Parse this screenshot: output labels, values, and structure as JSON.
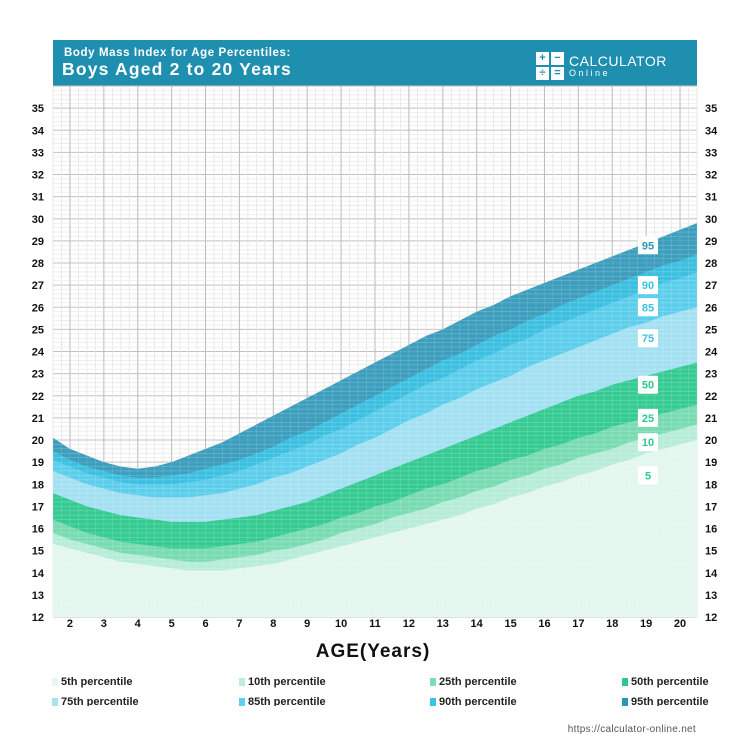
{
  "header": {
    "title": "Body Mass Index for Age Percentiles:",
    "subtitle": "Boys Aged 2 to 20 Years",
    "background_color": "#1f8fb0"
  },
  "logo": {
    "name": "CALCULATOR",
    "sub": "Online",
    "icon_symbols": [
      "+",
      "−",
      "÷",
      "="
    ]
  },
  "source_url": "https://calculator-online.net",
  "chart_data": {
    "type": "area",
    "title": "Body Mass Index for Age Percentiles:",
    "subtitle": "Boys Aged 2 to 20 Years",
    "xlabel": "AGE(Years)",
    "ylabel": "",
    "xlim": [
      1.5,
      20.5
    ],
    "ylim": [
      12,
      36
    ],
    "x_ticks": [
      2,
      3,
      4,
      5,
      6,
      7,
      8,
      9,
      10,
      11,
      12,
      13,
      14,
      15,
      16,
      17,
      18,
      19,
      20
    ],
    "y_ticks": [
      12,
      13,
      14,
      15,
      16,
      17,
      18,
      19,
      20,
      21,
      22,
      23,
      24,
      25,
      26,
      27,
      28,
      29,
      30,
      31,
      32,
      33,
      34,
      35
    ],
    "grid": true,
    "legend_position": "bottom",
    "x": [
      1.5,
      2,
      2.5,
      3,
      3.5,
      4,
      4.5,
      5,
      5.5,
      6,
      6.5,
      7,
      7.5,
      8,
      8.5,
      9,
      9.5,
      10,
      10.5,
      11,
      11.5,
      12,
      12.5,
      13,
      13.5,
      14,
      14.5,
      15,
      15.5,
      16,
      16.5,
      17,
      17.5,
      18,
      18.5,
      19,
      19.5,
      20,
      20.5
    ],
    "series": [
      {
        "name": "5th percentile",
        "color": "#e6f7f0",
        "values": [
          15.3,
          15.1,
          14.9,
          14.7,
          14.5,
          14.4,
          14.3,
          14.2,
          14.1,
          14.1,
          14.1,
          14.2,
          14.3,
          14.4,
          14.6,
          14.8,
          15.0,
          15.2,
          15.4,
          15.6,
          15.8,
          16.0,
          16.2,
          16.4,
          16.6,
          16.9,
          17.1,
          17.4,
          17.6,
          17.9,
          18.1,
          18.4,
          18.6,
          18.9,
          19.1,
          19.4,
          19.6,
          19.8,
          20.0
        ]
      },
      {
        "name": "10th percentile",
        "color": "#bdeedb",
        "values": [
          15.8,
          15.5,
          15.3,
          15.1,
          14.9,
          14.8,
          14.7,
          14.6,
          14.5,
          14.5,
          14.6,
          14.7,
          14.8,
          15.0,
          15.1,
          15.3,
          15.5,
          15.8,
          16.0,
          16.2,
          16.5,
          16.7,
          16.9,
          17.2,
          17.4,
          17.7,
          17.9,
          18.2,
          18.4,
          18.7,
          18.9,
          19.2,
          19.4,
          19.6,
          19.9,
          20.1,
          20.3,
          20.5,
          20.7
        ]
      },
      {
        "name": "25th percentile",
        "color": "#7fdcb4",
        "values": [
          16.4,
          16.1,
          15.8,
          15.6,
          15.4,
          15.3,
          15.2,
          15.1,
          15.1,
          15.1,
          15.2,
          15.3,
          15.4,
          15.6,
          15.8,
          16.0,
          16.2,
          16.5,
          16.7,
          17.0,
          17.2,
          17.5,
          17.8,
          18.0,
          18.3,
          18.6,
          18.8,
          19.1,
          19.3,
          19.6,
          19.8,
          20.1,
          20.3,
          20.6,
          20.8,
          21.0,
          21.2,
          21.4,
          21.6
        ]
      },
      {
        "name": "50th percentile",
        "color": "#2dc98a",
        "values": [
          17.6,
          17.3,
          17.0,
          16.8,
          16.6,
          16.5,
          16.4,
          16.3,
          16.3,
          16.3,
          16.4,
          16.5,
          16.6,
          16.8,
          17.0,
          17.2,
          17.5,
          17.8,
          18.1,
          18.4,
          18.7,
          19.0,
          19.3,
          19.6,
          19.9,
          20.2,
          20.5,
          20.8,
          21.1,
          21.4,
          21.7,
          22.0,
          22.2,
          22.5,
          22.7,
          22.9,
          23.1,
          23.3,
          23.5
        ]
      },
      {
        "name": "75th percentile",
        "color": "#a9e3f2",
        "values": [
          18.6,
          18.3,
          18.0,
          17.8,
          17.6,
          17.5,
          17.4,
          17.4,
          17.4,
          17.5,
          17.6,
          17.8,
          18.0,
          18.3,
          18.5,
          18.8,
          19.1,
          19.4,
          19.8,
          20.1,
          20.5,
          20.9,
          21.2,
          21.6,
          21.9,
          22.3,
          22.6,
          22.9,
          23.3,
          23.6,
          23.9,
          24.2,
          24.5,
          24.8,
          25.1,
          25.3,
          25.6,
          25.8,
          26.0
        ]
      },
      {
        "name": "85th percentile",
        "color": "#5fcfec",
        "values": [
          19.1,
          18.8,
          18.5,
          18.3,
          18.1,
          18.0,
          18.0,
          18.0,
          18.1,
          18.2,
          18.4,
          18.6,
          18.9,
          19.2,
          19.5,
          19.8,
          20.2,
          20.5,
          20.9,
          21.3,
          21.7,
          22.1,
          22.5,
          22.8,
          23.2,
          23.6,
          23.9,
          24.3,
          24.6,
          25.0,
          25.3,
          25.6,
          25.9,
          26.2,
          26.5,
          26.8,
          27.1,
          27.3,
          27.6
        ]
      },
      {
        "name": "90th percentile",
        "color": "#3cc2e3",
        "values": [
          19.5,
          19.1,
          18.8,
          18.6,
          18.4,
          18.3,
          18.3,
          18.4,
          18.5,
          18.7,
          18.9,
          19.1,
          19.4,
          19.7,
          20.1,
          20.4,
          20.8,
          21.2,
          21.6,
          22.0,
          22.4,
          22.8,
          23.2,
          23.6,
          23.9,
          24.3,
          24.7,
          25.0,
          25.4,
          25.7,
          26.1,
          26.4,
          26.7,
          27.0,
          27.3,
          27.6,
          27.9,
          28.1,
          28.4
        ]
      },
      {
        "name": "95th percentile",
        "color": "#2c96b9",
        "values": [
          20.1,
          19.6,
          19.3,
          19.0,
          18.8,
          18.7,
          18.8,
          19.0,
          19.3,
          19.6,
          19.9,
          20.3,
          20.7,
          21.1,
          21.5,
          21.9,
          22.3,
          22.7,
          23.1,
          23.5,
          23.9,
          24.3,
          24.7,
          25.0,
          25.4,
          25.8,
          26.1,
          26.5,
          26.8,
          27.1,
          27.4,
          27.7,
          28.0,
          28.3,
          28.6,
          28.9,
          29.2,
          29.5,
          29.8
        ]
      }
    ],
    "end_labels": [
      {
        "text": "95",
        "y": 28.8,
        "color": "#2c96b9"
      },
      {
        "text": "90",
        "y": 27.0,
        "color": "#3cc2e3"
      },
      {
        "text": "85",
        "y": 26.0,
        "color": "#3cc2e3"
      },
      {
        "text": "75",
        "y": 24.6,
        "color": "#3cc2e3"
      },
      {
        "text": "50",
        "y": 22.5,
        "color": "#2dc98a"
      },
      {
        "text": "25",
        "y": 21.0,
        "color": "#2dc98a"
      },
      {
        "text": "10",
        "y": 19.9,
        "color": "#2dc98a"
      },
      {
        "text": "5",
        "y": 18.4,
        "color": "#2dc98a"
      }
    ]
  }
}
